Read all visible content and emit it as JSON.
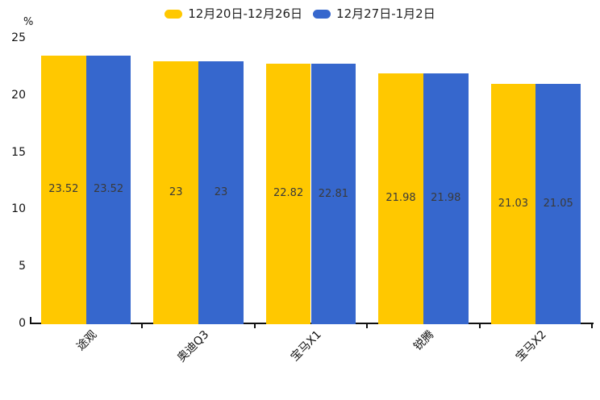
{
  "chart_data": {
    "type": "bar",
    "title": "",
    "categories": [
      "途观",
      "奥迪Q3",
      "宝马X1",
      "锐腾",
      "宝马X2"
    ],
    "series": [
      {
        "name": "12月20日-12月26日",
        "color": "#FFC800",
        "values": [
          23.52,
          23,
          22.82,
          21.98,
          21.03
        ]
      },
      {
        "name": "12月27日-1月2日",
        "color": "#3667CD",
        "values": [
          23.52,
          23,
          22.81,
          21.98,
          21.05
        ]
      }
    ],
    "xlabel": "",
    "ylabel": "%",
    "ylim": [
      0,
      25
    ],
    "yticks": [
      0,
      5,
      10,
      15,
      20,
      25
    ],
    "grid": false,
    "legend_position": "top",
    "value_labels_shown": true,
    "axis_color": "#101010",
    "value_label_color": "#3a3a3a"
  },
  "legend": {
    "items": [
      {
        "label": "12月20日-12月26日",
        "color": "#FFC800"
      },
      {
        "label": "12月27日-1月2日",
        "color": "#3667CD"
      }
    ]
  },
  "unit_label": "%"
}
